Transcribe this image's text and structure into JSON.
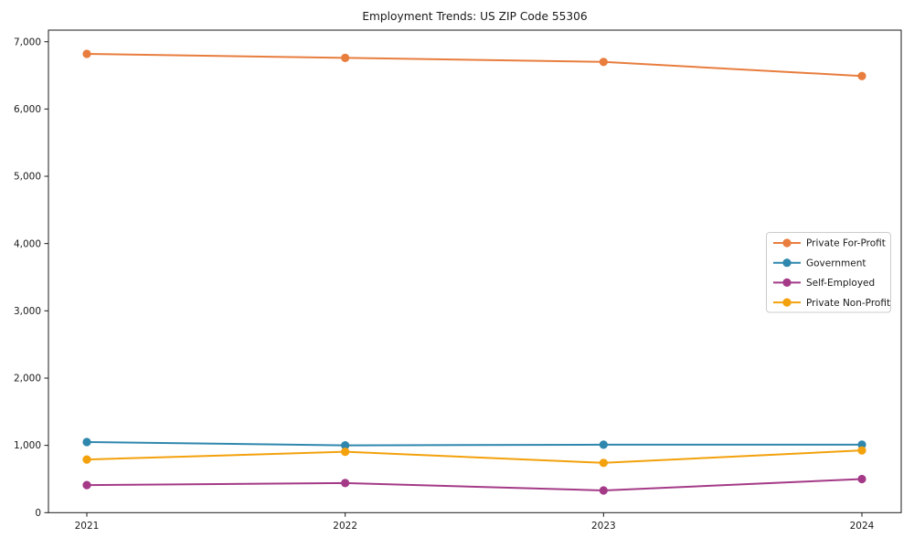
{
  "chart_data": {
    "type": "line",
    "title": "Employment Trends: US ZIP Code 55306",
    "xlabel": "",
    "ylabel": "",
    "categories": [
      "2021",
      "2022",
      "2023",
      "2024"
    ],
    "series": [
      {
        "name": "Private For-Profit",
        "color": "#e87d3e",
        "values": [
          6820,
          6760,
          6700,
          6490
        ]
      },
      {
        "name": "Government",
        "color": "#2f87ad",
        "values": [
          1050,
          1000,
          1010,
          1010
        ]
      },
      {
        "name": "Self-Employed",
        "color": "#a43a87",
        "values": [
          410,
          440,
          330,
          500
        ]
      },
      {
        "name": "Private Non-Profit",
        "color": "#f3a10c",
        "values": [
          790,
          905,
          740,
          925
        ]
      }
    ],
    "ylim": [
      0,
      7170
    ],
    "yticks": [
      0,
      1000,
      2000,
      3000,
      4000,
      5000,
      6000,
      7000
    ],
    "ytick_labels": [
      "0",
      "1,000",
      "2,000",
      "3,000",
      "4,000",
      "5,000",
      "6,000",
      "7,000"
    ],
    "grid": false,
    "legend_position": "right-middle",
    "axis_color": "#1a1a1a",
    "legend_border_color": "#cccccc",
    "legend_background": "#ffffff"
  }
}
